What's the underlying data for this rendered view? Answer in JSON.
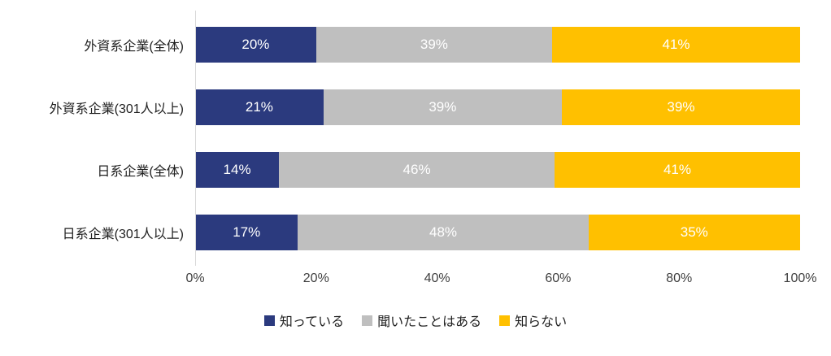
{
  "chart_data": {
    "type": "bar",
    "orientation": "horizontal",
    "stacked": true,
    "title": "",
    "categories": [
      "外資系企業(全体)",
      "外資系企業(301人以上)",
      "日系企業(全体)",
      "日系企業(301人以上)"
    ],
    "series": [
      {
        "name": "知っている",
        "color": "#2B3A7E",
        "values": [
          20,
          21,
          14,
          17
        ]
      },
      {
        "name": "聞いたことはある",
        "color": "#BFBFBF",
        "values": [
          39,
          39,
          46,
          48
        ]
      },
      {
        "name": "知らない",
        "color": "#FFC000",
        "values": [
          41,
          39,
          41,
          35
        ]
      }
    ],
    "value_suffix": "%",
    "xlim": [
      0,
      100
    ],
    "x_tick_values": [
      0,
      20,
      40,
      60,
      80,
      100
    ],
    "x_tick_labels": [
      "0%",
      "20%",
      "40%",
      "60%",
      "80%",
      "100%"
    ],
    "data_label_color": "#FFFFFF",
    "axis_line_color": "#D9D9D9",
    "legend_position": "bottom",
    "grid": false
  }
}
